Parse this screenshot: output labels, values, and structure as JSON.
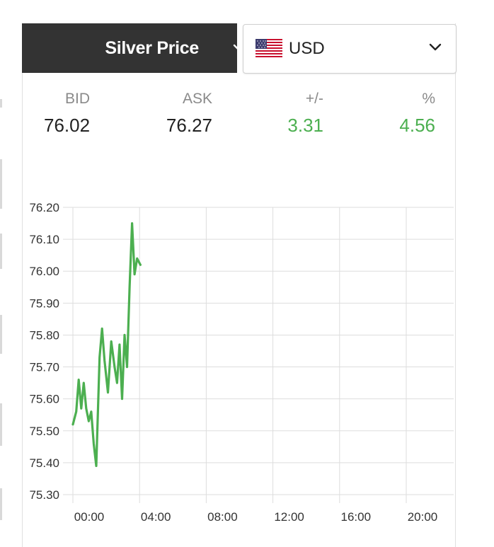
{
  "metal_select": {
    "label": "Silver Price",
    "icon": "chevron-down-icon"
  },
  "currency_select": {
    "label": "USD",
    "flag_icon": "us-flag-icon",
    "icon": "chevron-down-icon"
  },
  "quote": {
    "bid_label": "BID",
    "bid": "76.02",
    "ask_label": "ASK",
    "ask": "76.27",
    "change_label": "+/-",
    "change": "3.31",
    "percent_label": "%",
    "percent": "4.56"
  },
  "colors": {
    "positive": "#4caf50",
    "header_bg": "#333333",
    "line": "#4caf50",
    "grid": "#dddddd"
  },
  "chart_data": {
    "type": "line",
    "title": "",
    "xlabel": "",
    "ylabel": "",
    "x_unit": "hours",
    "xlim": [
      -0.2,
      23.3
    ],
    "ylim": [
      75.3,
      76.2
    ],
    "y_ticks": [
      "76.20",
      "76.10",
      "76.00",
      "75.90",
      "75.80",
      "75.70",
      "75.60",
      "75.50",
      "75.40",
      "75.30"
    ],
    "x_ticks": [
      "00:00",
      "04:00",
      "08:00",
      "12:00",
      "16:00",
      "20:00"
    ],
    "grid": true,
    "legend": "none",
    "series": [
      {
        "x": [
          0.0,
          0.2,
          0.35,
          0.5,
          0.65,
          0.8,
          0.95,
          1.1,
          1.25,
          1.4,
          1.6,
          1.75,
          1.9,
          2.1,
          2.3,
          2.5,
          2.65,
          2.8,
          2.95,
          3.1,
          3.25,
          3.4,
          3.55,
          3.7,
          3.85,
          4.05
        ],
        "y": [
          75.52,
          75.56,
          75.66,
          75.57,
          75.65,
          75.57,
          75.53,
          75.56,
          75.46,
          75.39,
          75.73,
          75.82,
          75.72,
          75.62,
          75.78,
          75.7,
          75.65,
          75.77,
          75.6,
          75.8,
          75.7,
          75.95,
          76.15,
          75.99,
          76.04,
          76.02
        ]
      }
    ]
  }
}
